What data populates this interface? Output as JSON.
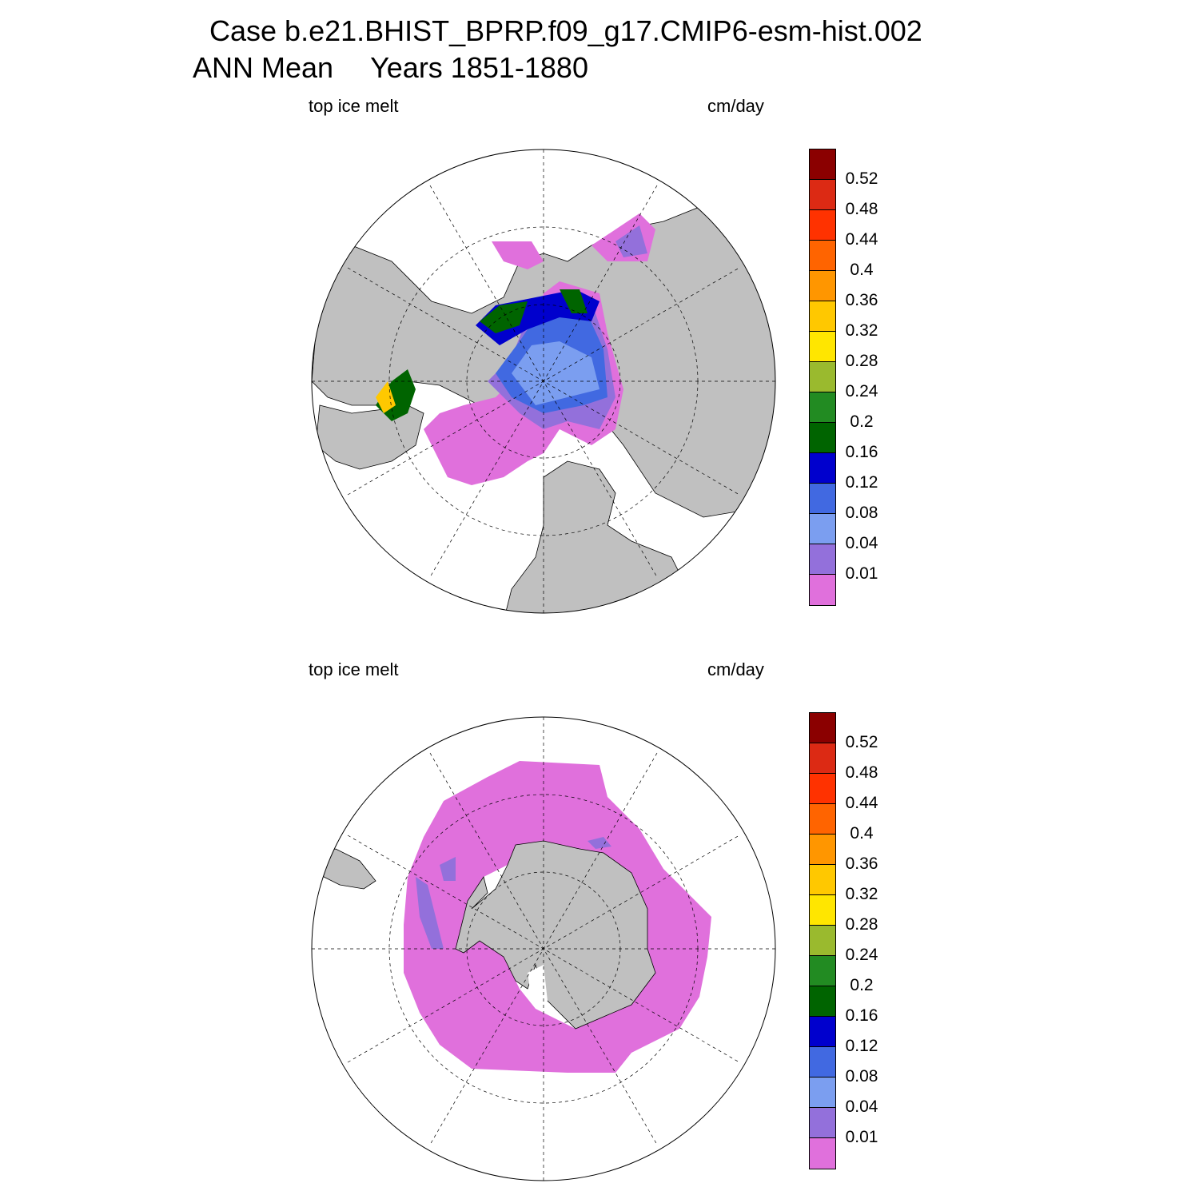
{
  "title": {
    "case": "Case b.e21.BHIST_BPRP.f09_g17.CMIP6-esm-hist.002",
    "period": "ANN Mean",
    "years": "Years 1851-1880"
  },
  "panels": [
    {
      "hemisphere": "north",
      "left_label": "top ice melt",
      "right_label": "cm/day"
    },
    {
      "hemisphere": "south",
      "left_label": "top ice melt",
      "right_label": "cm/day"
    }
  ],
  "colorbar": {
    "labels": [
      "0.52",
      "0.48",
      "0.44",
      "0.4",
      "0.36",
      "0.32",
      "0.28",
      "0.24",
      "0.2",
      "0.16",
      "0.12",
      "0.08",
      "0.04",
      "0.01"
    ],
    "colors": [
      "#8b0000",
      "#dc2a14",
      "#ff3200",
      "#ff6400",
      "#ff9600",
      "#ffc800",
      "#ffe600",
      "#9aba2e",
      "#228b22",
      "#006400",
      "#0000cd",
      "#4169e1",
      "#7b9ef0",
      "#9370db",
      "#e070dc"
    ]
  },
  "colors": {
    "land": "#c0c0c0",
    "ocean": "#ffffff"
  }
}
